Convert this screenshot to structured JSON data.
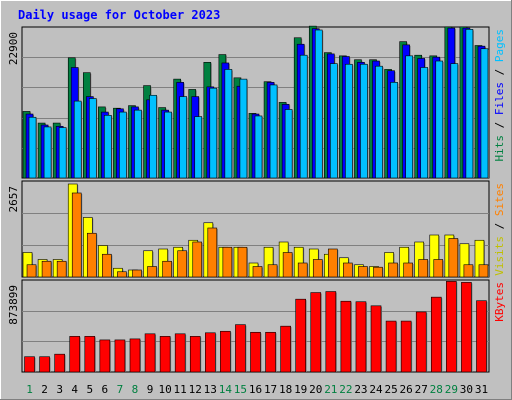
{
  "chart_data": {
    "type": "bar",
    "title": "Daily usage for October 2023",
    "categories": [
      "1",
      "2",
      "3",
      "4",
      "5",
      "6",
      "7",
      "8",
      "9",
      "10",
      "11",
      "12",
      "13",
      "14",
      "15",
      "16",
      "17",
      "18",
      "19",
      "20",
      "21",
      "22",
      "23",
      "24",
      "25",
      "26",
      "27",
      "28",
      "29",
      "30",
      "31"
    ],
    "weekend_days": [
      "1",
      "7",
      "8",
      "14",
      "15",
      "21",
      "22",
      "28",
      "29"
    ],
    "panels": [
      {
        "id": "hits",
        "ymax": 22900,
        "ymax_label": "22900",
        "right_label": [
          {
            "text": "Hits",
            "color": "#008040"
          },
          {
            "text": " / ",
            "color": "#000000"
          },
          {
            "text": "Files",
            "color": "#0000ff"
          },
          {
            "text": " / ",
            "color": "#000000"
          },
          {
            "text": "Pages",
            "color": "#00c0ff"
          }
        ],
        "series": [
          {
            "name": "Hits",
            "color": "#008040",
            "values": [
              10300,
              8500,
              8500,
              18600,
              16300,
              11000,
              10800,
              11200,
              14300,
              10900,
              15300,
              13700,
              17900,
              19100,
              15500,
              10000,
              14900,
              11700,
              21700,
              23500,
              19400,
              18900,
              18300,
              18300,
              16800,
              21100,
              19000,
              18900,
              23400,
              23400,
              20500
            ]
          },
          {
            "name": "Files",
            "color": "#0000ff",
            "values": [
              9900,
              8200,
              8000,
              17100,
              12600,
              10200,
              10700,
              11000,
              12100,
              10500,
              14800,
              12600,
              14100,
              17800,
              14200,
              9900,
              14800,
              11400,
              20700,
              23100,
              19200,
              18800,
              17900,
              18100,
              16600,
              20600,
              18500,
              18700,
              23200,
              23200,
              20400
            ]
          },
          {
            "name": "Pages",
            "color": "#00c0ff",
            "values": [
              9400,
              7900,
              7800,
              11900,
              12300,
              9700,
              10200,
              10500,
              12800,
              10200,
              12600,
              9500,
              13900,
              16800,
              15300,
              9600,
              14400,
              10600,
              19000,
              22900,
              17700,
              17600,
              17600,
              17300,
              14800,
              18900,
              17100,
              18100,
              17700,
              23000,
              20000
            ]
          }
        ]
      },
      {
        "id": "visits",
        "ymax": 2657,
        "ymax_label": "2657",
        "right_label": [
          {
            "text": "Visits",
            "color": "#c0c000"
          },
          {
            "text": " / ",
            "color": "#000000"
          },
          {
            "text": "Sites",
            "color": "#ff8000"
          }
        ],
        "series": [
          {
            "name": "Visits",
            "color": "#ffff00",
            "values": [
              700,
              500,
              500,
              2657,
              1700,
              900,
              250,
              200,
              750,
              800,
              850,
              1050,
              1550,
              850,
              850,
              400,
              850,
              1000,
              850,
              800,
              650,
              550,
              350,
              300,
              700,
              850,
              1000,
              1200,
              1200,
              950,
              1050
            ]
          },
          {
            "name": "Sites",
            "color": "#ff8000",
            "values": [
              350,
              450,
              450,
              2400,
              1250,
              650,
              150,
              200,
              300,
              450,
              750,
              1000,
              1400,
              850,
              850,
              300,
              350,
              700,
              400,
              500,
              800,
              400,
              300,
              280,
              400,
              400,
              500,
              500,
              1100,
              350,
              350
            ]
          }
        ]
      },
      {
        "id": "kbytes",
        "ymax": 873899,
        "ymax_label": "873899",
        "right_label": [
          {
            "text": "KBytes",
            "color": "#ff0000"
          }
        ],
        "series": [
          {
            "name": "KBytes",
            "color": "#ff0000",
            "values": [
              150000,
              150000,
              175000,
              350000,
              350000,
              315000,
              315000,
              325000,
              375000,
              350000,
              375000,
              350000,
              385000,
              400000,
              465000,
              390000,
              390000,
              450000,
              715000,
              780000,
              790000,
              695000,
              690000,
              650000,
              500000,
              500000,
              590000,
              735000,
              890000,
              880000,
              700000
            ]
          }
        ]
      }
    ]
  }
}
